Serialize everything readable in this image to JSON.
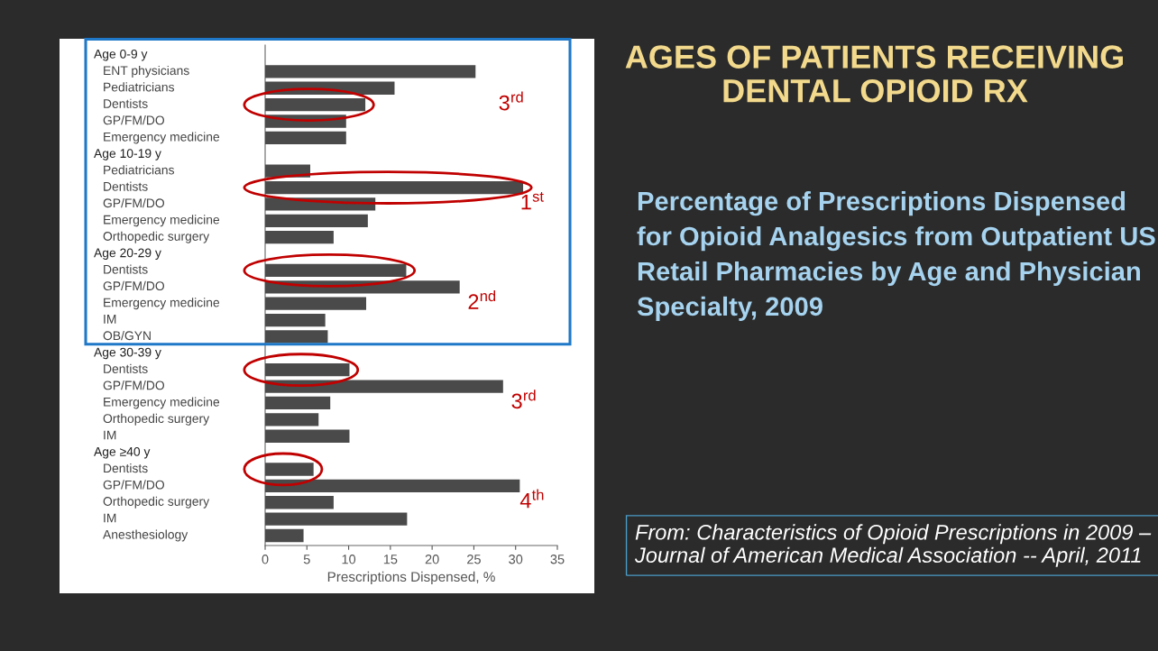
{
  "chart_data": {
    "type": "bar",
    "orientation": "horizontal",
    "title": "AGES OF PATIENTS RECEIVING DENTAL OPIOID RX",
    "subtitle": "Percentage of Prescriptions Dispensed for Opioid Analgesics from Outpatient US Retail Pharmacies by Age and Physician Specialty, 2009",
    "xlabel": "Prescriptions Dispensed, %",
    "categories": [
      null,
      "ENT physicians",
      "Pediatricians",
      "Dentists",
      "GP/FM/DO",
      "Emergency medicine",
      null,
      "Pediatricians",
      "Dentists",
      "GP/FM/DO",
      "Emergency medicine",
      "Orthopedic surgery",
      null,
      "Dentists",
      "GP/FM/DO",
      "Emergency medicine",
      "IM",
      "OB/GYN",
      null,
      "Dentists",
      "GP/FM/DO",
      "Emergency medicine",
      "Orthopedic surgery",
      "IM",
      null,
      "Dentists",
      "GP/FM/DO",
      "Orthopedic surgery",
      "IM",
      "Anesthesiology"
    ],
    "values": [
      null,
      25.2,
      15.5,
      12.0,
      9.7,
      9.7,
      null,
      5.4,
      30.9,
      13.2,
      12.3,
      8.2,
      null,
      16.9,
      23.3,
      12.1,
      7.2,
      7.5,
      null,
      10.1,
      28.5,
      7.8,
      6.4,
      10.1,
      null,
      5.8,
      30.5,
      8.2,
      17.0,
      4.6
    ],
    "color": "#4a4a4a",
    "xlim": [
      0,
      35
    ],
    "xticks": [
      0,
      5,
      10,
      15,
      20,
      25,
      30,
      35
    ],
    "annotations": [
      "Age 0-9 y",
      "Age 10-19 y",
      "Age 20-29 y",
      "Age 30-39 y",
      "Age ≥40 y",
      "3$^{rd}$",
      "1$^{st}$",
      "2$^{nd}$",
      "3$^{rd}$",
      "4$^{th}$",
      "From: Characteristics of Opioid Prescriptions in 2009 – Journal of American Medical Association -- April, 2011"
    ]
  }
}
